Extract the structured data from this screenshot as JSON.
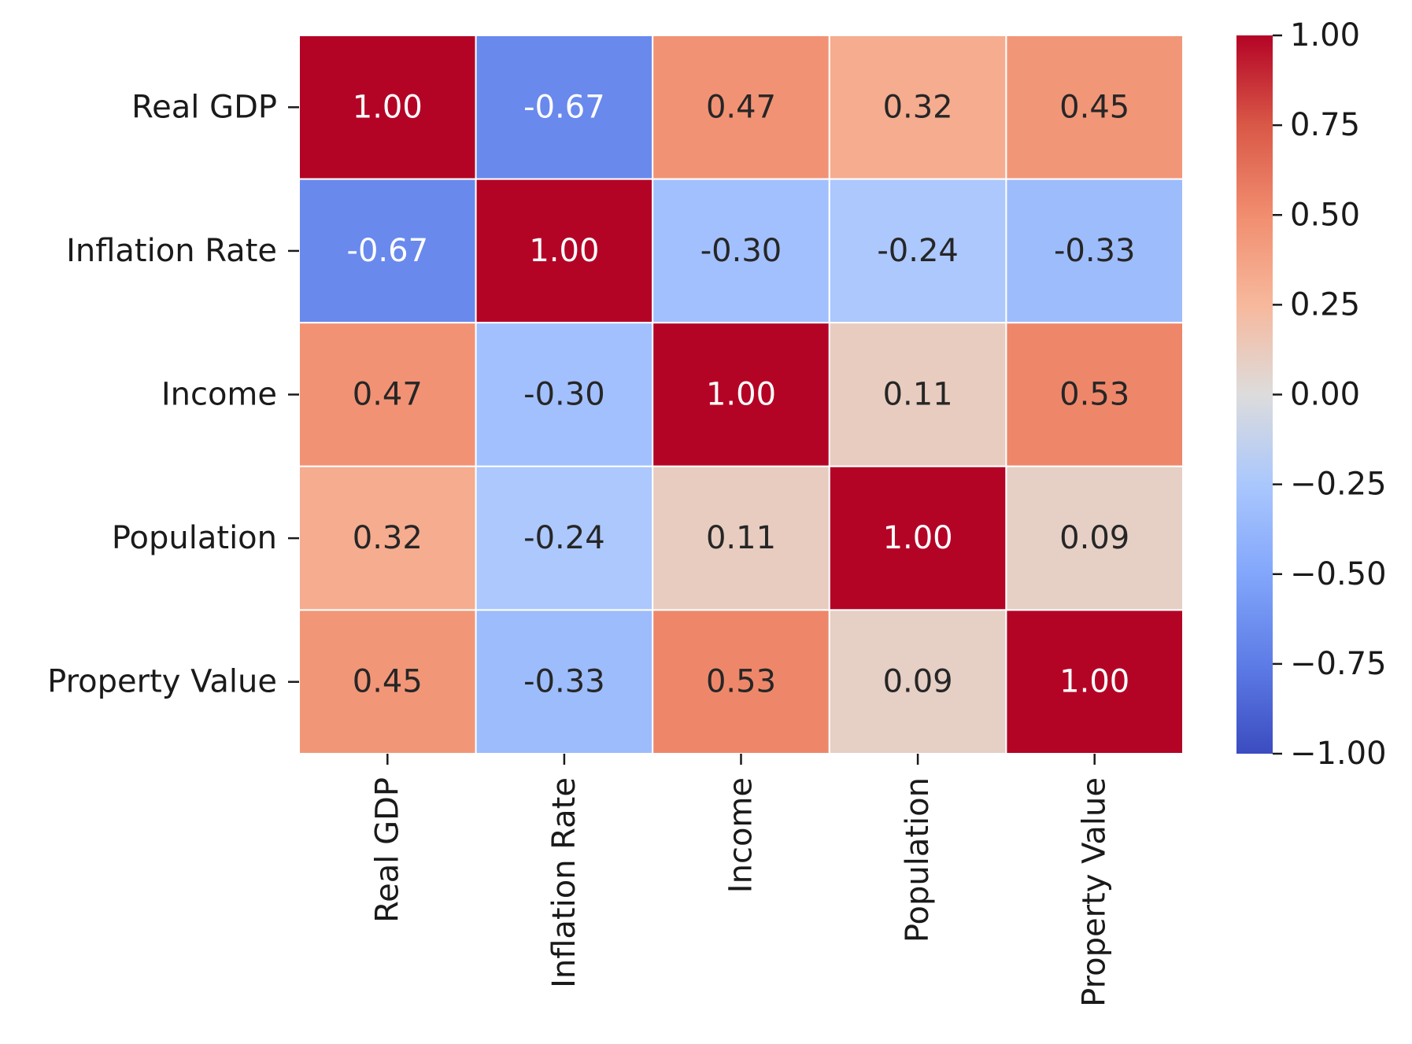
{
  "chart_data": {
    "type": "heatmap",
    "title": "",
    "xlabel": "",
    "ylabel": "",
    "rows": [
      "Real GDP",
      "Inflation Rate",
      "Income",
      "Population",
      "Property Value"
    ],
    "columns": [
      "Real GDP",
      "Inflation Rate",
      "Income",
      "Population",
      "Property Value"
    ],
    "values": [
      [
        1.0,
        -0.67,
        0.47,
        0.32,
        0.45
      ],
      [
        -0.67,
        1.0,
        -0.3,
        -0.24,
        -0.33
      ],
      [
        0.47,
        -0.3,
        1.0,
        0.11,
        0.53
      ],
      [
        0.32,
        -0.24,
        0.11,
        1.0,
        0.09
      ],
      [
        0.45,
        -0.33,
        0.53,
        0.09,
        1.0
      ]
    ],
    "cell_labels": [
      [
        "1.00",
        "-0.67",
        "0.47",
        "0.32",
        "0.45"
      ],
      [
        "-0.67",
        "1.00",
        "-0.30",
        "-0.24",
        "-0.33"
      ],
      [
        "0.47",
        "-0.30",
        "1.00",
        "0.11",
        "0.53"
      ],
      [
        "0.32",
        "-0.24",
        "0.11",
        "1.00",
        "0.09"
      ],
      [
        "0.45",
        "-0.33",
        "0.53",
        "0.09",
        "1.00"
      ]
    ],
    "colorbar": {
      "range": [
        -1,
        1
      ],
      "ticks": [
        1.0,
        0.75,
        0.5,
        0.25,
        0.0,
        -0.25,
        -0.5,
        -0.75,
        -1.0
      ],
      "tick_labels": [
        "1.00",
        "0.75",
        "0.50",
        "0.25",
        "0.00",
        "−0.25",
        "−0.50",
        "−0.75",
        "−1.00"
      ]
    },
    "colormap": "coolwarm",
    "colormap_stops": [
      {
        "v": -1.0,
        "color": "#3b4cc0"
      },
      {
        "v": -0.75,
        "color": "#5d7ce6"
      },
      {
        "v": -0.5,
        "color": "#82a6fb"
      },
      {
        "v": -0.25,
        "color": "#aac7fd"
      },
      {
        "v": 0.0,
        "color": "#dddcdc"
      },
      {
        "v": 0.25,
        "color": "#f7b89c"
      },
      {
        "v": 0.5,
        "color": "#f18d6f"
      },
      {
        "v": 0.75,
        "color": "#d95847"
      },
      {
        "v": 1.0,
        "color": "#b40426"
      }
    ],
    "grid": true,
    "legend": "colorbar-right"
  }
}
